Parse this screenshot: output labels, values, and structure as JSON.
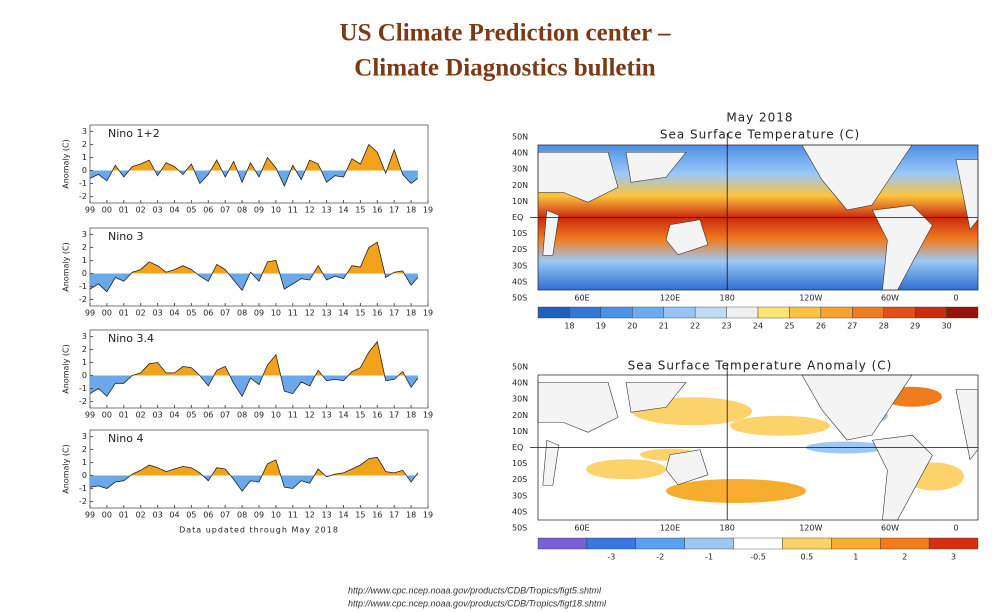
{
  "title": [
    "US Climate Prediction center –",
    "Climate Diagnostics bulletin"
  ],
  "chart_data": [
    {
      "type": "area",
      "title": "Nino 1+2",
      "ylabel": "Anomaly (C)",
      "x": [
        1999,
        1999.5,
        2000,
        2000.5,
        2001,
        2001.5,
        2002,
        2002.5,
        2003,
        2003.5,
        2004,
        2004.5,
        2005,
        2005.5,
        2006,
        2006.5,
        2007,
        2007.5,
        2008,
        2008.5,
        2009,
        2009.5,
        2010,
        2010.5,
        2011,
        2011.5,
        2012,
        2012.5,
        2013,
        2013.5,
        2014,
        2014.5,
        2015,
        2015.5,
        2016,
        2016.5,
        2017,
        2017.5,
        2018,
        2018.4
      ],
      "values": [
        -0.6,
        -0.3,
        -0.8,
        0.4,
        -0.5,
        0.3,
        0.5,
        0.8,
        -0.4,
        0.6,
        0.3,
        -0.3,
        0.5,
        -1.0,
        -0.3,
        0.8,
        -0.5,
        0.7,
        -0.9,
        0.6,
        -0.5,
        1.0,
        0.2,
        -1.2,
        0.4,
        -0.7,
        0.8,
        0.5,
        -0.9,
        -0.4,
        -0.5,
        0.9,
        0.5,
        2.0,
        1.4,
        -0.2,
        1.6,
        -0.3,
        -1.0,
        -0.6
      ],
      "colors": {
        "line": "#222222",
        "positive": "#f2a31b",
        "negative": "#6aa8ea"
      },
      "xlim": [
        1999,
        2019
      ],
      "ylim": [
        -2.5,
        3.5
      ],
      "yticks": [
        -2,
        -1,
        0,
        1,
        2,
        3
      ],
      "xticks": [
        {
          "value": 1999,
          "label": "99"
        },
        {
          "value": 2000,
          "label": "00"
        },
        {
          "value": 2001,
          "label": "01"
        },
        {
          "value": 2002,
          "label": "02"
        },
        {
          "value": 2003,
          "label": "03"
        },
        {
          "value": 2004,
          "label": "04"
        },
        {
          "value": 2005,
          "label": "05"
        },
        {
          "value": 2006,
          "label": "06"
        },
        {
          "value": 2007,
          "label": "07"
        },
        {
          "value": 2008,
          "label": "08"
        },
        {
          "value": 2009,
          "label": "09"
        },
        {
          "value": 2010,
          "label": "10"
        },
        {
          "value": 2011,
          "label": "11"
        },
        {
          "value": 2012,
          "label": "12"
        },
        {
          "value": 2013,
          "label": "13"
        },
        {
          "value": 2014,
          "label": "14"
        },
        {
          "value": 2015,
          "label": "15"
        },
        {
          "value": 2016,
          "label": "16"
        },
        {
          "value": 2017,
          "label": "17"
        },
        {
          "value": 2018,
          "label": "18"
        },
        {
          "value": 2019,
          "label": "19"
        }
      ]
    },
    {
      "type": "area",
      "title": "Nino 3",
      "ylabel": "Anomaly (C)",
      "x": [
        1999,
        1999.5,
        2000,
        2000.5,
        2001,
        2001.5,
        2002,
        2002.5,
        2003,
        2003.5,
        2004,
        2004.5,
        2005,
        2005.5,
        2006,
        2006.5,
        2007,
        2007.5,
        2008,
        2008.5,
        2009,
        2009.5,
        2010,
        2010.5,
        2011,
        2011.5,
        2012,
        2012.5,
        2013,
        2013.5,
        2014,
        2014.5,
        2015,
        2015.5,
        2016,
        2016.5,
        2017,
        2017.5,
        2018,
        2018.4
      ],
      "values": [
        -1.2,
        -0.8,
        -1.4,
        -0.3,
        -0.6,
        0.1,
        0.3,
        0.9,
        0.6,
        0.1,
        0.3,
        0.6,
        0.3,
        -0.2,
        -0.6,
        0.7,
        0.3,
        -0.5,
        -1.3,
        0.1,
        -0.6,
        0.9,
        1.0,
        -1.2,
        -0.8,
        -0.4,
        -0.5,
        0.6,
        -0.5,
        -0.2,
        -0.4,
        0.6,
        0.5,
        2.0,
        2.4,
        -0.3,
        0.1,
        0.2,
        -0.9,
        -0.3
      ],
      "colors": {
        "line": "#222222",
        "positive": "#f2a31b",
        "negative": "#6aa8ea"
      },
      "xlim": [
        1999,
        2019
      ],
      "ylim": [
        -2.5,
        3.5
      ],
      "yticks": [
        -2,
        -1,
        0,
        1,
        2,
        3
      ],
      "xticks": [
        {
          "value": 1999,
          "label": "99"
        },
        {
          "value": 2000,
          "label": "00"
        },
        {
          "value": 2001,
          "label": "01"
        },
        {
          "value": 2002,
          "label": "02"
        },
        {
          "value": 2003,
          "label": "03"
        },
        {
          "value": 2004,
          "label": "04"
        },
        {
          "value": 2005,
          "label": "05"
        },
        {
          "value": 2006,
          "label": "06"
        },
        {
          "value": 2007,
          "label": "07"
        },
        {
          "value": 2008,
          "label": "08"
        },
        {
          "value": 2009,
          "label": "09"
        },
        {
          "value": 2010,
          "label": "10"
        },
        {
          "value": 2011,
          "label": "11"
        },
        {
          "value": 2012,
          "label": "12"
        },
        {
          "value": 2013,
          "label": "13"
        },
        {
          "value": 2014,
          "label": "14"
        },
        {
          "value": 2015,
          "label": "15"
        },
        {
          "value": 2016,
          "label": "16"
        },
        {
          "value": 2017,
          "label": "17"
        },
        {
          "value": 2018,
          "label": "18"
        },
        {
          "value": 2019,
          "label": "19"
        }
      ]
    },
    {
      "type": "area",
      "title": "Nino 3.4",
      "ylabel": "Anomaly (C)",
      "x": [
        1999,
        1999.5,
        2000,
        2000.5,
        2001,
        2001.5,
        2002,
        2002.5,
        2003,
        2003.5,
        2004,
        2004.5,
        2005,
        2005.5,
        2006,
        2006.5,
        2007,
        2007.5,
        2008,
        2008.5,
        2009,
        2009.5,
        2010,
        2010.5,
        2011,
        2011.5,
        2012,
        2012.5,
        2013,
        2013.5,
        2014,
        2014.5,
        2015,
        2015.5,
        2016,
        2016.5,
        2017,
        2017.5,
        2018,
        2018.4
      ],
      "values": [
        -1.4,
        -1.0,
        -1.6,
        -0.6,
        -0.6,
        0.0,
        0.2,
        0.9,
        1.0,
        0.2,
        0.2,
        0.7,
        0.6,
        0.0,
        -0.8,
        0.4,
        0.7,
        -0.6,
        -1.6,
        -0.2,
        -0.7,
        0.8,
        1.6,
        -1.2,
        -1.4,
        -0.5,
        -0.8,
        0.4,
        -0.4,
        -0.3,
        -0.4,
        0.3,
        0.6,
        1.8,
        2.6,
        -0.4,
        -0.3,
        0.3,
        -0.9,
        -0.2
      ],
      "colors": {
        "line": "#222222",
        "positive": "#f2a31b",
        "negative": "#6aa8ea"
      },
      "xlim": [
        1999,
        2019
      ],
      "ylim": [
        -2.5,
        3.5
      ],
      "yticks": [
        -2,
        -1,
        0,
        1,
        2,
        3
      ],
      "xticks": [
        {
          "value": 1999,
          "label": "99"
        },
        {
          "value": 2000,
          "label": "00"
        },
        {
          "value": 2001,
          "label": "01"
        },
        {
          "value": 2002,
          "label": "02"
        },
        {
          "value": 2003,
          "label": "03"
        },
        {
          "value": 2004,
          "label": "04"
        },
        {
          "value": 2005,
          "label": "05"
        },
        {
          "value": 2006,
          "label": "06"
        },
        {
          "value": 2007,
          "label": "07"
        },
        {
          "value": 2008,
          "label": "08"
        },
        {
          "value": 2009,
          "label": "09"
        },
        {
          "value": 2010,
          "label": "10"
        },
        {
          "value": 2011,
          "label": "11"
        },
        {
          "value": 2012,
          "label": "12"
        },
        {
          "value": 2013,
          "label": "13"
        },
        {
          "value": 2014,
          "label": "14"
        },
        {
          "value": 2015,
          "label": "15"
        },
        {
          "value": 2016,
          "label": "16"
        },
        {
          "value": 2017,
          "label": "17"
        },
        {
          "value": 2018,
          "label": "18"
        },
        {
          "value": 2019,
          "label": "19"
        }
      ]
    },
    {
      "type": "area",
      "title": "Nino 4",
      "ylabel": "Anomaly (C)",
      "xlabel": "Data updated through May 2018",
      "x": [
        1999,
        1999.5,
        2000,
        2000.5,
        2001,
        2001.5,
        2002,
        2002.5,
        2003,
        2003.5,
        2004,
        2004.5,
        2005,
        2005.5,
        2006,
        2006.5,
        2007,
        2007.5,
        2008,
        2008.5,
        2009,
        2009.5,
        2010,
        2010.5,
        2011,
        2011.5,
        2012,
        2012.5,
        2013,
        2013.5,
        2014,
        2014.5,
        2015,
        2015.5,
        2016,
        2016.5,
        2017,
        2017.5,
        2018,
        2018.4
      ],
      "values": [
        -0.9,
        -0.8,
        -1.0,
        -0.5,
        -0.4,
        0.1,
        0.4,
        0.8,
        0.6,
        0.3,
        0.5,
        0.7,
        0.6,
        0.2,
        -0.4,
        0.6,
        0.5,
        -0.3,
        -1.2,
        -0.4,
        -0.5,
        0.9,
        1.2,
        -0.9,
        -1.0,
        -0.4,
        -0.6,
        0.5,
        -0.1,
        0.1,
        0.2,
        0.5,
        0.8,
        1.3,
        1.4,
        0.3,
        0.2,
        0.4,
        -0.5,
        0.2
      ],
      "colors": {
        "line": "#222222",
        "positive": "#f2a31b",
        "negative": "#6aa8ea"
      },
      "xlim": [
        1999,
        2019
      ],
      "ylim": [
        -2.5,
        3.5
      ],
      "yticks": [
        -2,
        -1,
        0,
        1,
        2,
        3
      ],
      "xticks": [
        {
          "value": 1999,
          "label": "99"
        },
        {
          "value": 2000,
          "label": "00"
        },
        {
          "value": 2001,
          "label": "01"
        },
        {
          "value": 2002,
          "label": "02"
        },
        {
          "value": 2003,
          "label": "03"
        },
        {
          "value": 2004,
          "label": "04"
        },
        {
          "value": 2005,
          "label": "05"
        },
        {
          "value": 2006,
          "label": "06"
        },
        {
          "value": 2007,
          "label": "07"
        },
        {
          "value": 2008,
          "label": "08"
        },
        {
          "value": 2009,
          "label": "09"
        },
        {
          "value": 2010,
          "label": "10"
        },
        {
          "value": 2011,
          "label": "11"
        },
        {
          "value": 2012,
          "label": "12"
        },
        {
          "value": 2013,
          "label": "13"
        },
        {
          "value": 2014,
          "label": "14"
        },
        {
          "value": 2015,
          "label": "15"
        },
        {
          "value": 2016,
          "label": "16"
        },
        {
          "value": 2017,
          "label": "17"
        },
        {
          "value": 2018,
          "label": "18"
        },
        {
          "value": 2019,
          "label": "19"
        }
      ]
    }
  ],
  "maps": [
    {
      "title": [
        "May 2018",
        "Sea Surface Temperature (C)"
      ],
      "lat_labels": [
        "50N",
        "40N",
        "30N",
        "20N",
        "10N",
        "EQ",
        "10S",
        "20S",
        "30S",
        "40S",
        "50S"
      ],
      "lon_labels": [
        "60E",
        "120E",
        "180",
        "120W",
        "60W",
        "0"
      ],
      "colorbar": {
        "labels": [
          "18",
          "19",
          "20",
          "21",
          "22",
          "23",
          "24",
          "25",
          "26",
          "27",
          "28",
          "29",
          "30"
        ],
        "colors": [
          "#1f5fbf",
          "#3377d9",
          "#4d92ea",
          "#6eaaf0",
          "#95c4f5",
          "#bfdcf7",
          "#f0f0f0",
          "#fce56b",
          "#fbc43c",
          "#f8a12b",
          "#f07c1e",
          "#e34f14",
          "#cc2a0e",
          "#9b1008"
        ]
      }
    },
    {
      "title": [
        "Sea Surface Temperature Anomaly (C)"
      ],
      "lat_labels": [
        "50N",
        "40N",
        "30N",
        "20N",
        "10N",
        "EQ",
        "10S",
        "20S",
        "30S",
        "40S",
        "50S"
      ],
      "lon_labels": [
        "60E",
        "120E",
        "180",
        "120W",
        "60W",
        "0"
      ],
      "colorbar": {
        "labels": [
          "-3",
          "-2",
          "-1",
          "-0.5",
          "0.5",
          "1",
          "2",
          "3"
        ],
        "colors": [
          "#7b5fd6",
          "#3b77dd",
          "#5aa0ee",
          "#9cc8f5",
          "#ffffff",
          "#fcd36a",
          "#f8ac2f",
          "#f07c1e",
          "#d2300f"
        ]
      }
    }
  ],
  "links": [
    "http://www.cpc.ncep.noaa.gov/products/CDB/Tropics/figt5.shtml",
    "http://www.cpc.ncep.noaa.gov/products/CDB/Tropics/figt18.shtml"
  ]
}
